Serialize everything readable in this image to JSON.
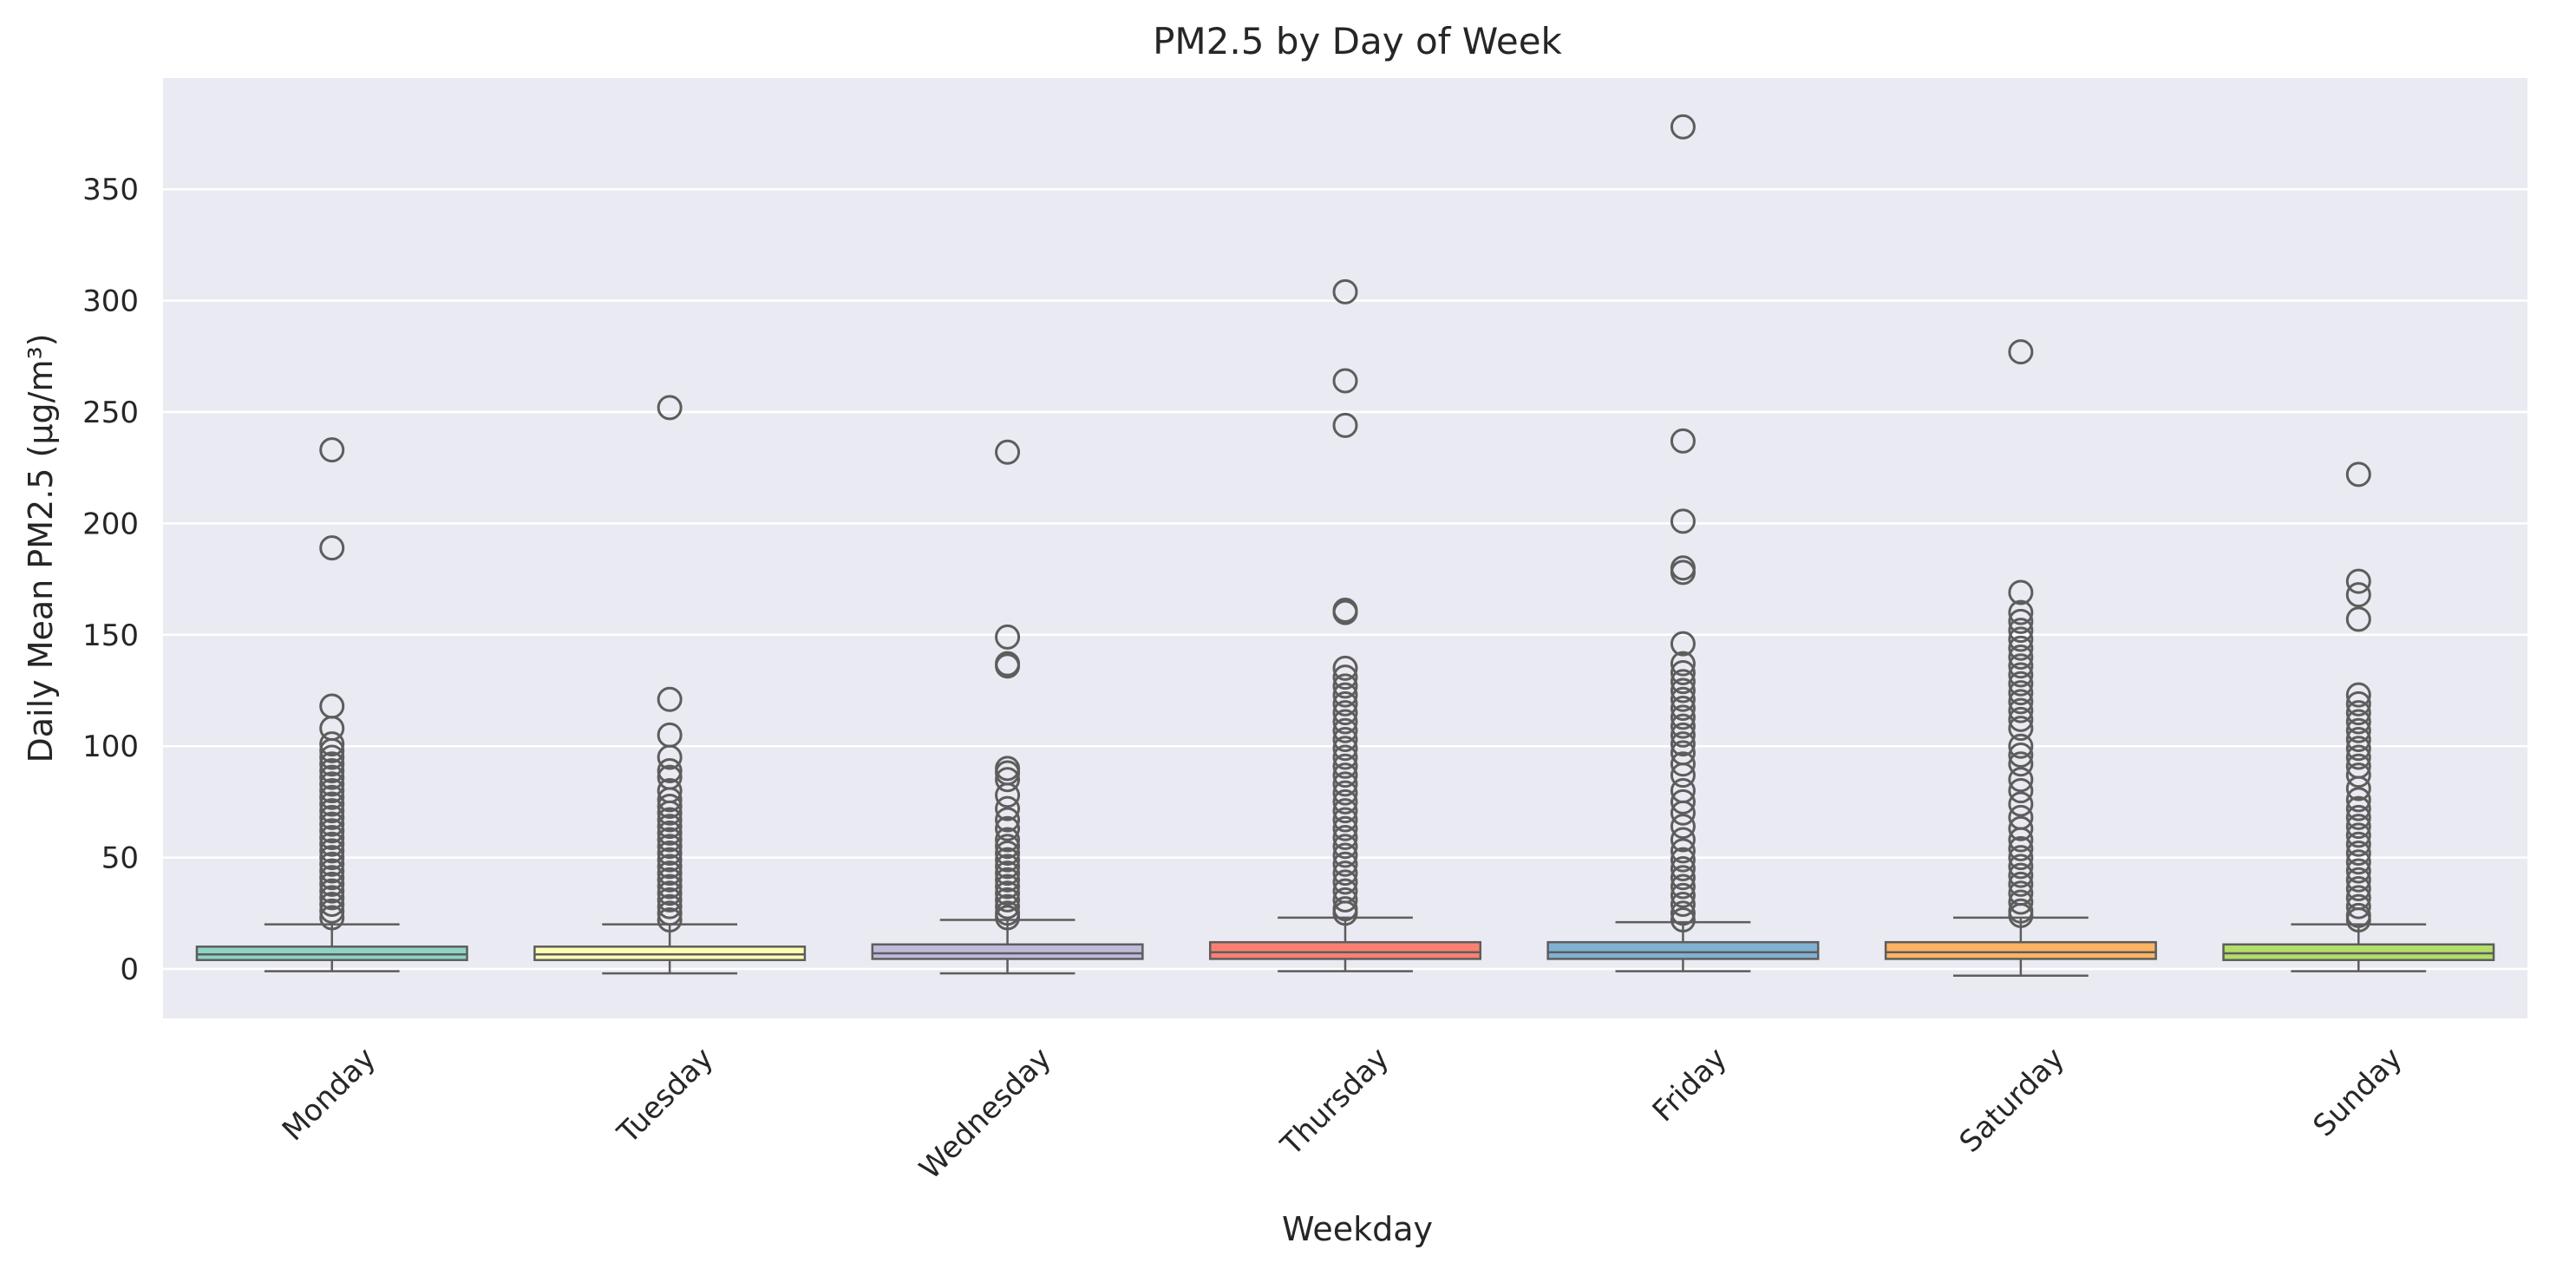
{
  "chart_data": {
    "type": "box",
    "title": "PM2.5 by Day of Week",
    "xlabel": "Weekday",
    "ylabel": "Daily Mean PM2.5 (µg/m³)",
    "ylim": [
      -22,
      398
    ],
    "yticks": [
      0,
      50,
      100,
      150,
      200,
      250,
      300,
      350
    ],
    "grid": true,
    "categories": [
      "Monday",
      "Tuesday",
      "Wednesday",
      "Thursday",
      "Friday",
      "Saturday",
      "Sunday"
    ],
    "boxes": [
      {
        "category": "Monday",
        "color": "#8dd3c7",
        "whisker_low": -1,
        "q1": 4,
        "median": 6.5,
        "q3": 10,
        "whisker_high": 20,
        "outliers": [
          233,
          189,
          118,
          108,
          101,
          98,
          95,
          92,
          89,
          86,
          83,
          80,
          77,
          74,
          71,
          68,
          65,
          62,
          59,
          56,
          53,
          50,
          47,
          44,
          41,
          38,
          35,
          32,
          29,
          26,
          23
        ]
      },
      {
        "category": "Tuesday",
        "color": "#ffffb3",
        "whisker_low": -2,
        "q1": 4,
        "median": 6.5,
        "q3": 10,
        "whisker_high": 20,
        "outliers": [
          252,
          121,
          105,
          95,
          89,
          86,
          80,
          76,
          73,
          70,
          67,
          64,
          61,
          58,
          55,
          52,
          49,
          46,
          43,
          40,
          37,
          34,
          31,
          28,
          25,
          22
        ]
      },
      {
        "category": "Wednesday",
        "color": "#bebada",
        "whisker_low": -2,
        "q1": 4.5,
        "median": 7,
        "q3": 11,
        "whisker_high": 22,
        "outliers": [
          232,
          149,
          137,
          136,
          90,
          88,
          85,
          78,
          72,
          67,
          63,
          58,
          55,
          52,
          49,
          46,
          43,
          40,
          37,
          34,
          31,
          28,
          25,
          23
        ]
      },
      {
        "category": "Thursday",
        "color": "#fb8072",
        "whisker_low": -1,
        "q1": 4.5,
        "median": 7.5,
        "q3": 12,
        "whisker_high": 23,
        "outliers": [
          304,
          264,
          244,
          161,
          160,
          135,
          131,
          127,
          123,
          119,
          115,
          111,
          107,
          103,
          99,
          95,
          91,
          87,
          83,
          79,
          75,
          71,
          67,
          63,
          59,
          55,
          51,
          47,
          43,
          39,
          35,
          31,
          27,
          25
        ]
      },
      {
        "category": "Friday",
        "color": "#80b1d3",
        "whisker_low": -1,
        "q1": 4.5,
        "median": 7.5,
        "q3": 12,
        "whisker_high": 21,
        "outliers": [
          378,
          237,
          201,
          180,
          178,
          146,
          137,
          133,
          129,
          125,
          121,
          117,
          113,
          109,
          105,
          101,
          97,
          92,
          87,
          80,
          75,
          70,
          64,
          58,
          53,
          49,
          45,
          41,
          37,
          33,
          29,
          25,
          22
        ]
      },
      {
        "category": "Saturday",
        "color": "#fdb462",
        "whisker_low": -3,
        "q1": 4.5,
        "median": 7.5,
        "q3": 12,
        "whisker_high": 23,
        "outliers": [
          277,
          169,
          160,
          156,
          152,
          148,
          144,
          140,
          136,
          132,
          128,
          124,
          120,
          116,
          112,
          108,
          100,
          96,
          92,
          85,
          80,
          74,
          68,
          63,
          58,
          54,
          50,
          46,
          42,
          38,
          34,
          30,
          26,
          24
        ]
      },
      {
        "category": "Sunday",
        "color": "#b3de69",
        "whisker_low": -1,
        "q1": 4,
        "median": 7,
        "q3": 11,
        "whisker_high": 20,
        "outliers": [
          222,
          174,
          168,
          157,
          123,
          119,
          115,
          111,
          107,
          103,
          99,
          95,
          91,
          87,
          81,
          76,
          72,
          68,
          64,
          60,
          56,
          52,
          48,
          44,
          40,
          36,
          32,
          28,
          24,
          22
        ]
      }
    ]
  }
}
